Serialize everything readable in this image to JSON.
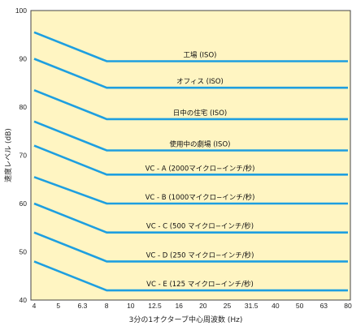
{
  "chart_data": {
    "type": "line",
    "title": "",
    "xlabel": "3分の1オクターブ中心周波数 (Hz)",
    "ylabel": "速度レベル (dB)",
    "x_scale": "log",
    "x_ticks": [
      "4",
      "5",
      "6.3",
      "8",
      "10",
      "12.5",
      "16",
      "20",
      "25",
      "31.5",
      "40",
      "50",
      "63",
      "80"
    ],
    "x": [
      4,
      8,
      80
    ],
    "ylim": [
      40,
      100
    ],
    "y_ticks": [
      "40",
      "50",
      "60",
      "70",
      "80",
      "90",
      "100"
    ],
    "grid": false,
    "legend": "none",
    "colors": {
      "background": "#fff5c2",
      "line": "#1e9fe0",
      "frame": "#444444",
      "text": "#222222"
    },
    "series": [
      {
        "name": "工場 (ISO)",
        "values": [
          95.5,
          89.5,
          89.5
        ]
      },
      {
        "name": "オフィス (ISO)",
        "values": [
          90,
          84,
          84
        ]
      },
      {
        "name": "日中の住宅 (ISO)",
        "values": [
          83.5,
          77.5,
          77.5
        ]
      },
      {
        "name": "使用中の劇場 (ISO)",
        "values": [
          77,
          71,
          71
        ]
      },
      {
        "name": "VC - A (2000マイクロ−インチ/秒)",
        "values": [
          72,
          66,
          66
        ]
      },
      {
        "name": "VC - B (1000マイクロ−インチ/秒)",
        "values": [
          65.5,
          60,
          60
        ]
      },
      {
        "name": "VC - C (500 マイクロ−インチ/秒)",
        "values": [
          60,
          54,
          54
        ]
      },
      {
        "name": "VC - D (250 マイクロ−インチ/秒)",
        "values": [
          54,
          48,
          48
        ]
      },
      {
        "name": "VC - E (125 マイクロ−インチ/秒)",
        "values": [
          48,
          42,
          42
        ]
      }
    ]
  }
}
